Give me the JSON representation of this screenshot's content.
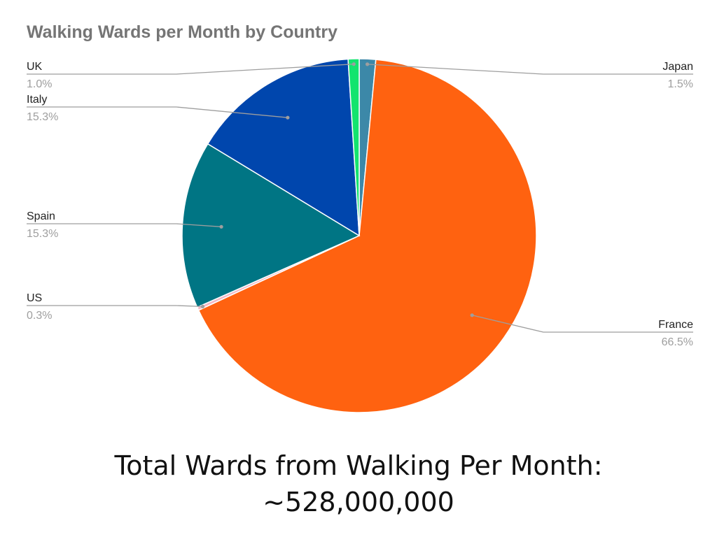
{
  "chart_data": {
    "type": "pie",
    "title": "Walking Wards per Month by Country",
    "slices": [
      {
        "label": "Japan",
        "value": 1.5,
        "percent_label": "1.5%",
        "color": "#3c88a8"
      },
      {
        "label": "France",
        "value": 66.5,
        "percent_label": "66.5%",
        "color": "#ff6210"
      },
      {
        "label": "US",
        "value": 0.3,
        "percent_label": "0.3%",
        "color": "#f2b8c6"
      },
      {
        "label": "Spain",
        "value": 15.3,
        "percent_label": "15.3%",
        "color": "#007584"
      },
      {
        "label": "Italy",
        "value": 15.3,
        "percent_label": "15.3%",
        "color": "#0046ad"
      },
      {
        "label": "UK",
        "value": 1.0,
        "percent_label": "1.0%",
        "color": "#13e46e"
      }
    ],
    "legend_placement": "callout-labels-left-right"
  },
  "caption": {
    "line1": "Total Wards from Walking Per Month:",
    "line2": "~528,000,000"
  }
}
